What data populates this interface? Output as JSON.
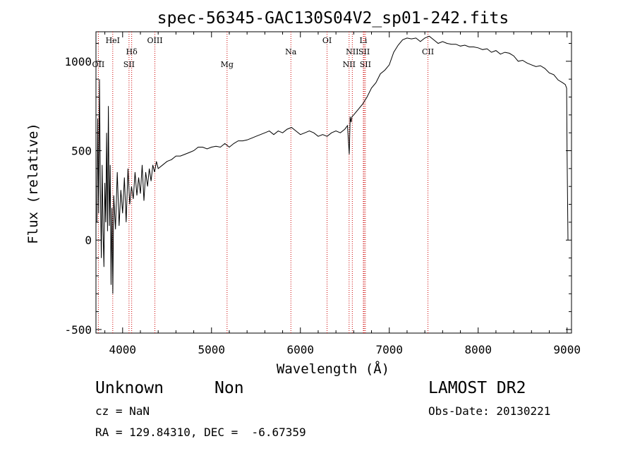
{
  "chart_data": {
    "type": "line",
    "title": "spec-56345-GAC130S04V2_sp01-242.fits",
    "xlabel": "Wavelength (Å)",
    "ylabel": "Flux (relative)",
    "xlim": [
      3700,
      9050
    ],
    "ylim": [
      -520,
      1165
    ],
    "xticks": [
      4000,
      5000,
      6000,
      7000,
      8000,
      9000
    ],
    "yticks": [
      -500,
      0,
      500,
      1000
    ],
    "xtick_labels": [
      "4000",
      "5000",
      "6000",
      "7000",
      "8000",
      "9000"
    ],
    "ytick_labels": [
      "-500",
      "0",
      "500",
      "1000"
    ],
    "grid": false,
    "line_color": "#000000",
    "marker_color": "#cc0000",
    "lines": [
      {
        "label": "OII",
        "x": 3727,
        "row": 3
      },
      {
        "label": "HeI",
        "x": 3889,
        "row": 0
      },
      {
        "label": "Hδ",
        "x": 4102,
        "row": 1
      },
      {
        "label": "SII",
        "x": 4072,
        "row": 2
      },
      {
        "label": "OIII",
        "x": 4363,
        "row": 0
      },
      {
        "label": "Mg",
        "x": 5175,
        "row": 3
      },
      {
        "label": "Na",
        "x": 5893,
        "row": 1
      },
      {
        "label": "OI",
        "x": 6300,
        "row": 0
      },
      {
        "label": "NII",
        "x": 6548,
        "row": 2
      },
      {
        "label": "NII",
        "x": 6584,
        "row": 1
      },
      {
        "label": "SII",
        "x": 6717,
        "row": 1
      },
      {
        "label": "SII",
        "x": 6731,
        "row": 2
      },
      {
        "label": "Li",
        "x": 6708,
        "row": 0
      },
      {
        "label": "CII",
        "x": 7435,
        "row": 1
      }
    ],
    "series": [
      {
        "x": [
          3710,
          3720,
          3730,
          3740,
          3750,
          3760,
          3770,
          3780,
          3790,
          3800,
          3810,
          3820,
          3830,
          3840,
          3850,
          3860,
          3870,
          3880,
          3890,
          3900,
          3920,
          3940,
          3960,
          3980,
          4000,
          4020,
          4040,
          4060,
          4080,
          4100,
          4120,
          4140,
          4160,
          4180,
          4200,
          4220,
          4240,
          4260,
          4280,
          4300,
          4320,
          4340,
          4360,
          4380,
          4400,
          4450,
          4500,
          4550,
          4600,
          4650,
          4700,
          4750,
          4800,
          4850,
          4900,
          4950,
          5000,
          5050,
          5100,
          5150,
          5200,
          5250,
          5300,
          5350,
          5400,
          5450,
          5500,
          5550,
          5600,
          5650,
          5700,
          5750,
          5800,
          5850,
          5900,
          5950,
          6000,
          6050,
          6100,
          6150,
          6200,
          6250,
          6300,
          6350,
          6400,
          6450,
          6500,
          6530,
          6550,
          6560,
          6570,
          6580,
          6600,
          6650,
          6700,
          6750,
          6800,
          6850,
          6900,
          6950,
          7000,
          7050,
          7100,
          7150,
          7200,
          7250,
          7300,
          7350,
          7400,
          7450,
          7500,
          7550,
          7600,
          7650,
          7700,
          7750,
          7800,
          7850,
          7900,
          7950,
          8000,
          8050,
          8100,
          8150,
          8200,
          8250,
          8300,
          8350,
          8400,
          8450,
          8500,
          8550,
          8600,
          8650,
          8700,
          8750,
          8800,
          8850,
          8900,
          8950,
          8980,
          8995,
          9000,
          9010
        ],
        "y": [
          100,
          680,
          150,
          900,
          300,
          -100,
          420,
          50,
          -150,
          320,
          100,
          600,
          50,
          750,
          80,
          420,
          -250,
          180,
          -300,
          250,
          60,
          380,
          80,
          280,
          150,
          350,
          100,
          400,
          200,
          300,
          230,
          380,
          250,
          350,
          260,
          420,
          220,
          380,
          300,
          400,
          330,
          420,
          380,
          440,
          400,
          420,
          440,
          450,
          470,
          470,
          480,
          490,
          500,
          520,
          520,
          510,
          520,
          525,
          520,
          540,
          520,
          540,
          555,
          555,
          560,
          570,
          580,
          590,
          600,
          610,
          590,
          610,
          600,
          620,
          630,
          610,
          590,
          600,
          610,
          600,
          580,
          590,
          580,
          600,
          610,
          600,
          620,
          640,
          480,
          690,
          660,
          690,
          700,
          730,
          760,
          800,
          850,
          880,
          930,
          950,
          980,
          1050,
          1090,
          1120,
          1130,
          1125,
          1130,
          1110,
          1130,
          1140,
          1120,
          1100,
          1110,
          1100,
          1095,
          1095,
          1085,
          1090,
          1080,
          1080,
          1075,
          1065,
          1070,
          1050,
          1060,
          1040,
          1050,
          1045,
          1030,
          1000,
          1005,
          990,
          980,
          970,
          975,
          960,
          935,
          925,
          895,
          880,
          870,
          850,
          500,
          0
        ]
      }
    ]
  },
  "info": {
    "object_class": "Unknown",
    "subclass": "Non",
    "survey": "LAMOST DR2",
    "cz": "cz = NaN",
    "obs_date": "Obs-Date: 20130221",
    "radec": "RA = 129.84310, DEC =  -6.67359"
  }
}
